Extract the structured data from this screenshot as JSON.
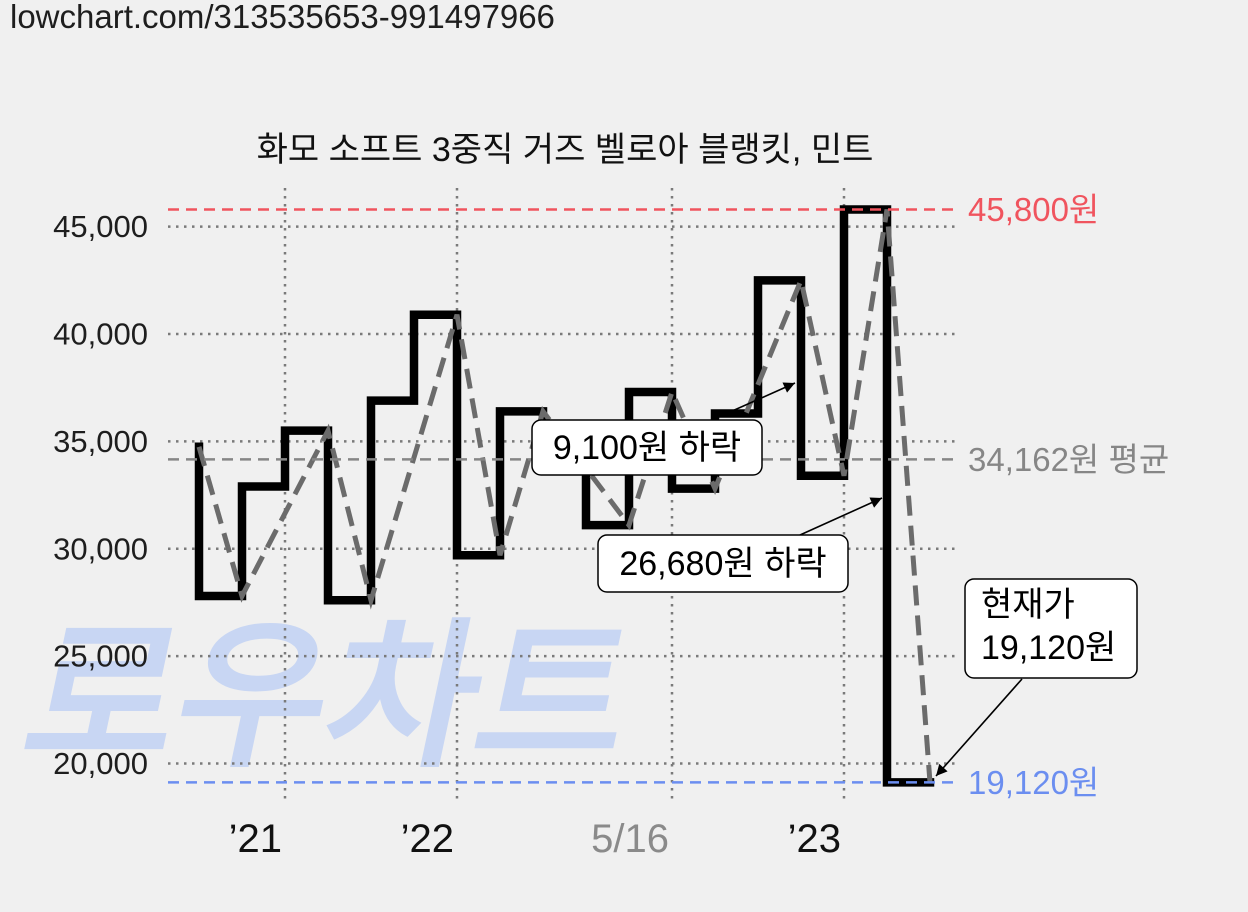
{
  "page": {
    "url_text": "lowchart.com/313535653-991497966",
    "watermark": "로우차트",
    "watermark_color": "#c8d6f3",
    "background": "#f0f0f0"
  },
  "chart_data": {
    "type": "line",
    "title": "화모 소프트 3중직 거즈 벨로아 블랭킷, 민트",
    "xlabel": "",
    "ylabel": "",
    "ylim": [
      18300,
      46800
    ],
    "grid": true,
    "y_ticks": [
      {
        "value": 45000,
        "label": "45,000"
      },
      {
        "value": 40000,
        "label": "40,000"
      },
      {
        "value": 35000,
        "label": "35,000"
      },
      {
        "value": 30000,
        "label": "30,000"
      },
      {
        "value": 25000,
        "label": "25,000"
      },
      {
        "value": 20000,
        "label": "20,000"
      }
    ],
    "x_ticks": [
      {
        "period": 2,
        "label": "’21",
        "color": "#111111"
      },
      {
        "period": 6,
        "label": "’22",
        "color": "#111111"
      },
      {
        "period": 11,
        "label": "5/16",
        "color": "#8a8a8a"
      },
      {
        "period": 15,
        "label": "’23",
        "color": "#111111"
      }
    ],
    "series": [
      {
        "style": "step",
        "color": "#000000",
        "start_value": 34750,
        "values": [
          27800,
          32900,
          35500,
          27600,
          36900,
          40900,
          29700,
          36400,
          34000,
          31100,
          37300,
          32800,
          36300,
          42500,
          33400,
          45800,
          19120
        ]
      },
      {
        "style": "dashed",
        "color": "#6b6b6b",
        "points": [
          [
            0,
            34750
          ],
          [
            1,
            27800
          ],
          [
            3,
            35500
          ],
          [
            4,
            27600
          ],
          [
            6,
            40900
          ],
          [
            7,
            29700
          ],
          [
            8,
            36400
          ],
          [
            10,
            31100
          ],
          [
            11,
            37300
          ],
          [
            12,
            32800
          ],
          [
            14,
            42500
          ],
          [
            15,
            33400
          ],
          [
            16,
            45800
          ],
          [
            17,
            19120
          ]
        ]
      }
    ],
    "reference_lines": [
      {
        "kind": "max",
        "value": 45800,
        "label": "45,800원",
        "color": "#f0545e"
      },
      {
        "kind": "average",
        "value": 34162,
        "label": "34,162원 평균",
        "color": "#868686"
      },
      {
        "kind": "min",
        "value": 19120,
        "label": "19,120원",
        "color": "#6b8ef0"
      }
    ],
    "annotations": [
      {
        "text": "9,100원 하락"
      },
      {
        "text": "26,680원 하락"
      },
      {
        "lines": [
          "현재가",
          "19,120원"
        ]
      }
    ]
  }
}
